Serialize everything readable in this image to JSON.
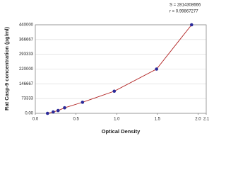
{
  "chart_data": {
    "type": "scatter",
    "y_label": "Rat Casp-9 concentration (pg/ml)",
    "x_label": "Optical Density",
    "annotations": [
      "S = 2814308666",
      "r = 0.99867277"
    ],
    "x": [
      0.15,
      0.22,
      0.28,
      0.36,
      0.58,
      0.97,
      1.49,
      1.92
    ],
    "values": [
      0,
      6875,
      13750,
      27500,
      55000,
      110000,
      220000,
      440000
    ],
    "color": "#2a2a9a",
    "curve_color": "#b02020",
    "xlim": [
      0,
      2.1
    ],
    "xticks": [
      {
        "value": 0,
        "label": "0.0"
      },
      0.5,
      {
        "value": 1,
        "label": "1.0"
      },
      1.5,
      {
        "value": 2,
        "label": "2.0"
      },
      2.1
    ],
    "ylim": [
      0,
      440000
    ],
    "yticks": [
      {
        "value": 0,
        "label": "0.00"
      },
      73333,
      146667,
      220000,
      293333,
      366667,
      440000
    ],
    "grid": true
  }
}
